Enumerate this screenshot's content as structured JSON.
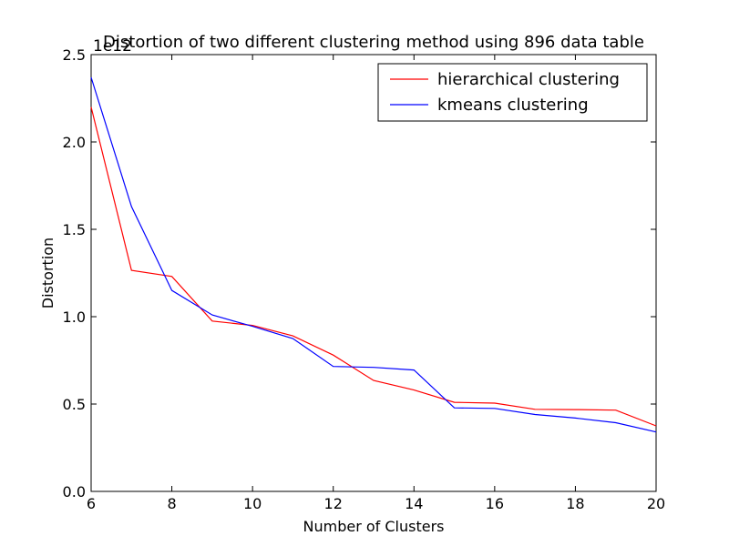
{
  "chart_data": {
    "type": "line",
    "title": "Distortion of two different clustering method using 896 data table",
    "xlabel": "Number of Clusters",
    "ylabel": "Distortion",
    "y_scale_label": "1e12",
    "xlim": [
      6,
      20
    ],
    "ylim": [
      0.0,
      2.5
    ],
    "x_ticks": [
      6,
      8,
      10,
      12,
      14,
      16,
      18,
      20
    ],
    "y_ticks": [
      0.0,
      0.5,
      1.0,
      1.5,
      2.0,
      2.5
    ],
    "x_tick_labels": [
      "6",
      "8",
      "10",
      "12",
      "14",
      "16",
      "18",
      "20"
    ],
    "y_tick_labels": [
      "0.0",
      "0.5",
      "1.0",
      "1.5",
      "2.0",
      "2.5"
    ],
    "grid": false,
    "legend_position": "top-right",
    "x": [
      6,
      7,
      8,
      9,
      10,
      11,
      12,
      13,
      14,
      15,
      16,
      17,
      18,
      19,
      20
    ],
    "series": [
      {
        "name": "hierarchical clustering",
        "color": "#ff0000",
        "values": [
          2.2,
          1.265,
          1.23,
          0.975,
          0.95,
          0.89,
          0.78,
          0.635,
          0.58,
          0.51,
          0.505,
          0.47,
          0.468,
          0.465,
          0.375
        ]
      },
      {
        "name": "kmeans clustering",
        "color": "#0000ff",
        "values": [
          2.37,
          1.63,
          1.15,
          1.01,
          0.945,
          0.875,
          0.715,
          0.71,
          0.695,
          0.478,
          0.475,
          0.44,
          0.42,
          0.393,
          0.34
        ]
      }
    ]
  }
}
